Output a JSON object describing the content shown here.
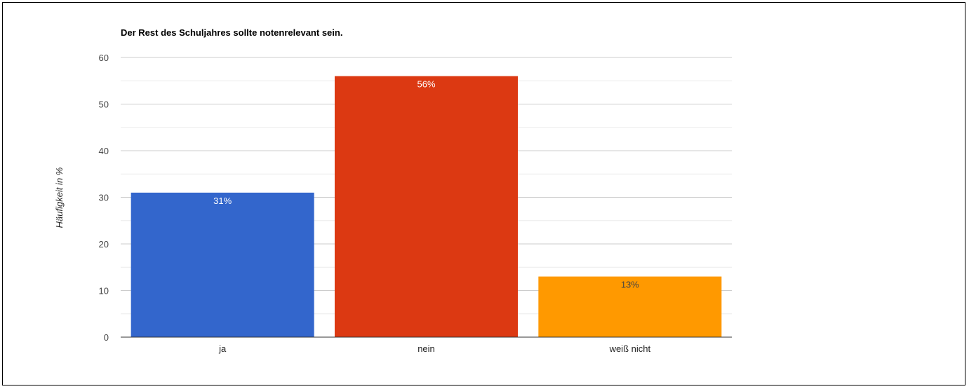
{
  "chart_data": {
    "type": "bar",
    "title": "Der Rest des Schuljahres sollte notenrelevant sein.",
    "xlabel": "",
    "ylabel": "Häufigkeit in %",
    "categories": [
      "ja",
      "nein",
      "weiß nicht"
    ],
    "values": [
      31,
      56,
      13
    ],
    "data_labels": [
      "31%",
      "56%",
      "13%"
    ],
    "colors": [
      "#3366cc",
      "#dc3912",
      "#ff9900"
    ],
    "label_colors": [
      "#ffffff",
      "#ffffff",
      "#444444"
    ],
    "ylim": [
      0,
      60
    ],
    "yticks": [
      "0",
      "10",
      "20",
      "30",
      "40",
      "50",
      "60"
    ],
    "grid": true,
    "legend": "none"
  }
}
